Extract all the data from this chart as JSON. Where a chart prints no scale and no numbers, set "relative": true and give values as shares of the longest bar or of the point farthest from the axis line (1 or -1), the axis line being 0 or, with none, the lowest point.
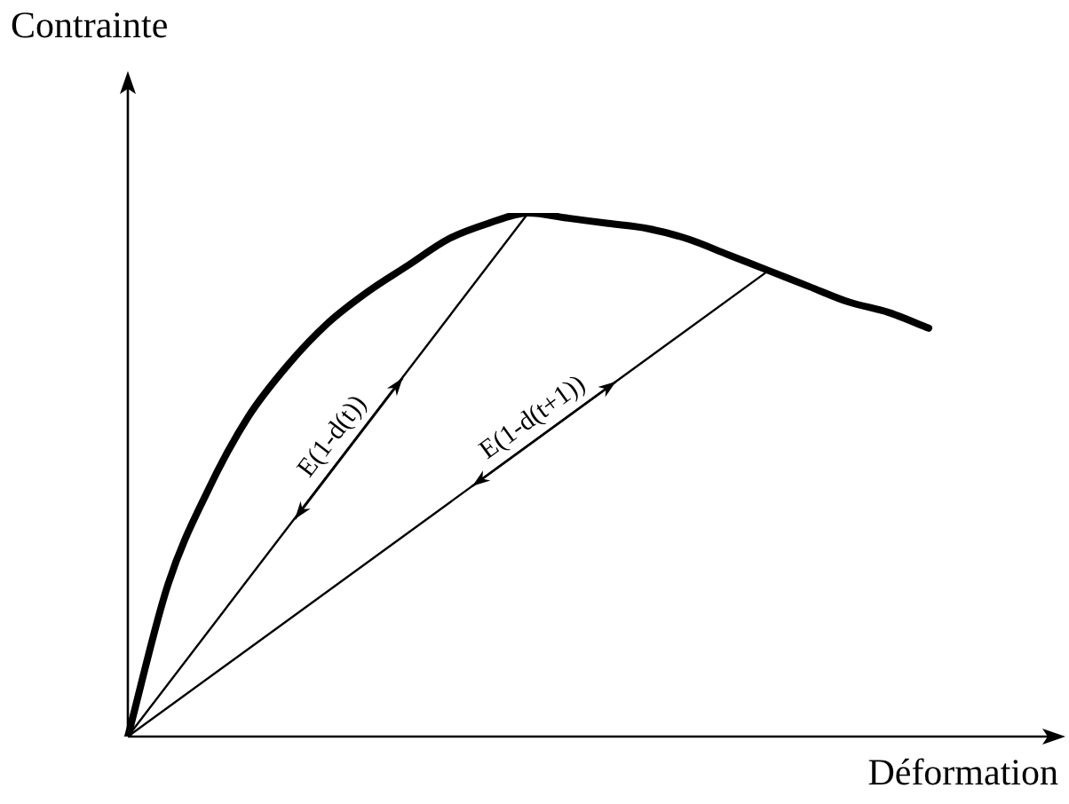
{
  "chart_data": {
    "type": "line",
    "xlabel": "Déformation",
    "ylabel": "Contrainte",
    "relative": true,
    "marker": "none",
    "categories": [
      null,
      null,
      null,
      null,
      null,
      null,
      null,
      null,
      null,
      null,
      null,
      null,
      null,
      null,
      null,
      null,
      null,
      null,
      null,
      null,
      null
    ],
    "series": [
      {
        "color": "#000000",
        "values": [
          0,
          0.29,
          0.47,
          0.61,
          0.71,
          0.79,
          0.85,
          0.9,
          0.95,
          0.98,
          1,
          0.99,
          0.98,
          0.97,
          0.95,
          0.92,
          0.89,
          0.86,
          0.83,
          0.81,
          0.78
        ]
      },
      {
        "color": "#000000",
        "values": [
          0,
          null,
          null,
          null,
          null,
          null,
          null,
          null,
          null,
          null,
          1,
          null,
          null,
          null,
          null,
          null,
          null,
          null,
          null,
          null,
          null
        ]
      },
      {
        "color": "#000000",
        "values": [
          0,
          null,
          null,
          null,
          null,
          null,
          null,
          null,
          null,
          null,
          null,
          null,
          null,
          null,
          null,
          null,
          0.89,
          null,
          null,
          null,
          null
        ]
      }
    ],
    "annotations": [
      "E(1-d(t))",
      "E(1-d(t+1))"
    ]
  }
}
